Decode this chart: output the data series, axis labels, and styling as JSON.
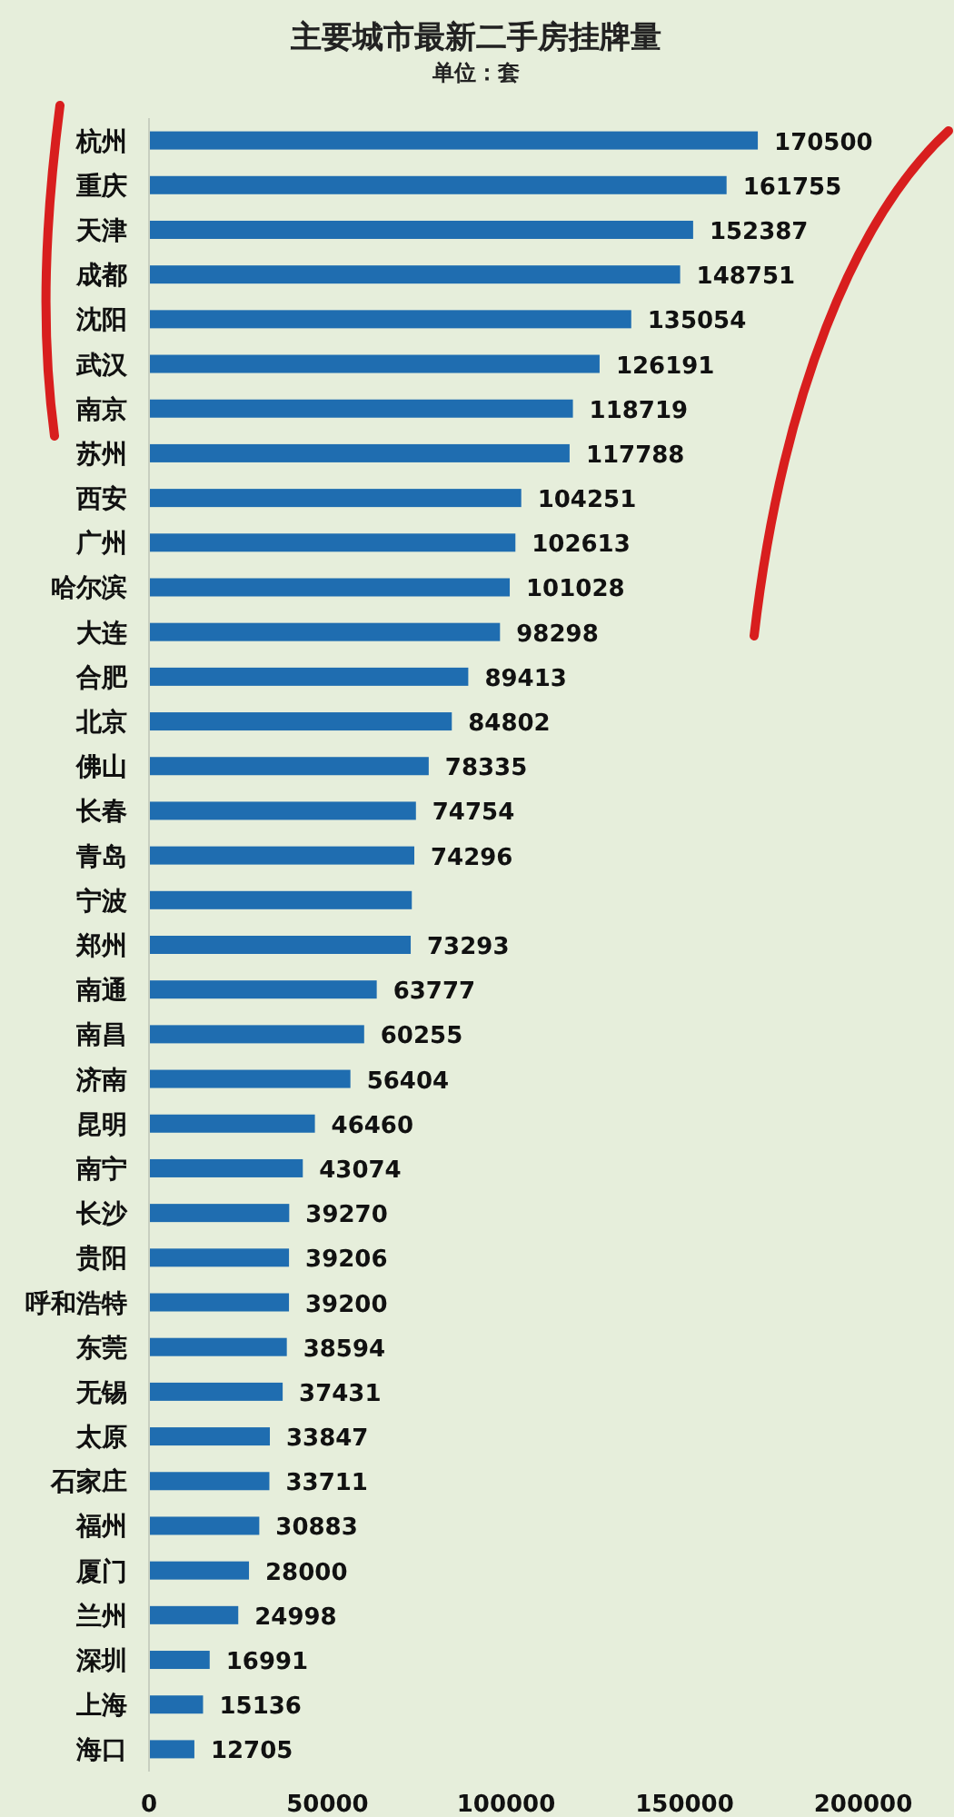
{
  "chart_data": {
    "type": "bar",
    "orientation": "horizontal",
    "title": "主要城市最新二手房挂牌量",
    "subtitle": "单位：套",
    "categories": [
      "杭州",
      "重庆",
      "天津",
      "成都",
      "沈阳",
      "武汉",
      "南京",
      "苏州",
      "西安",
      "广州",
      "哈尔滨",
      "大连",
      "合肥",
      "北京",
      "佛山",
      "长春",
      "青岛",
      "宁波",
      "郑州",
      "南通",
      "南昌",
      "济南",
      "昆明",
      "南宁",
      "长沙",
      "贵阳",
      "呼和浩特",
      "东莞",
      "无锡",
      "太原",
      "石家庄",
      "福州",
      "厦门",
      "兰州",
      "深圳",
      "上海",
      "海口"
    ],
    "values": [
      170500,
      161755,
      152387,
      148751,
      135054,
      126191,
      118719,
      117788,
      104251,
      102613,
      101028,
      98298,
      89413,
      84802,
      78335,
      74754,
      74296,
      73600,
      73293,
      63777,
      60255,
      56404,
      46460,
      43074,
      39270,
      39206,
      39200,
      38594,
      37431,
      33847,
      33711,
      30883,
      28000,
      24998,
      16991,
      15136,
      12705
    ],
    "value_labels": [
      "170500",
      "161755",
      "152387",
      "148751",
      "135054",
      "126191",
      "118719",
      "117788",
      "104251",
      "102613",
      "101028",
      "98298",
      "89413",
      "84802",
      "78335",
      "74754",
      "74296",
      null,
      "73293",
      "63777",
      "60255",
      "56404",
      "46460",
      "43074",
      "39270",
      "39206",
      "39200",
      "38594",
      "37431",
      "33847",
      "33711",
      "30883",
      "28000",
      "24998",
      "16991",
      "15136",
      "12705"
    ],
    "color": "#1f6db0",
    "xlim": [
      0,
      200000
    ],
    "xticks": [
      0,
      50000,
      100000,
      150000,
      200000
    ]
  }
}
